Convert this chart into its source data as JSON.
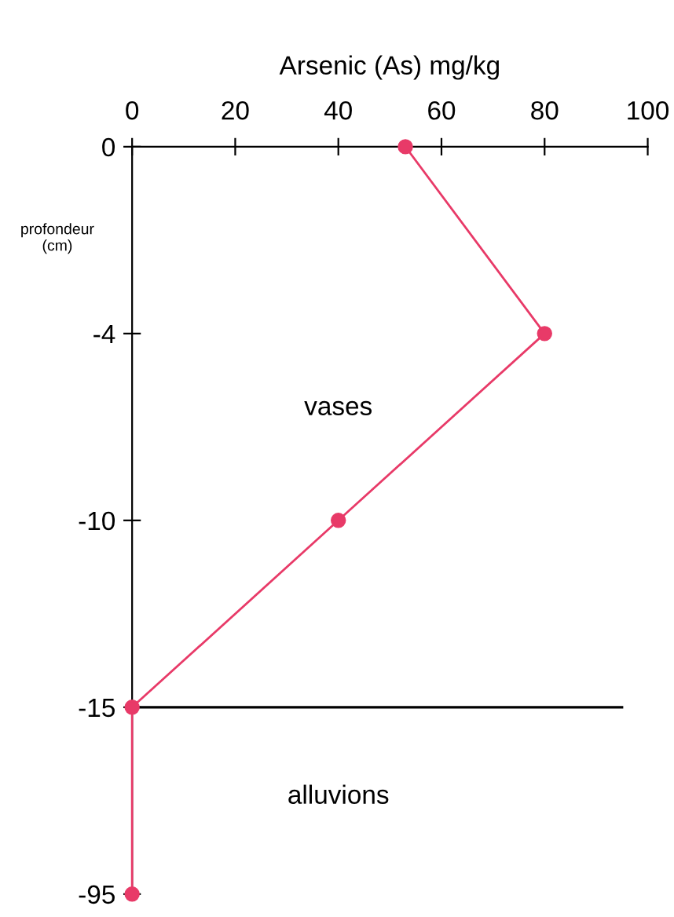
{
  "chart_data": {
    "type": "line",
    "orientation": "horizontal",
    "xlabel": "Arsenic (As) mg/kg",
    "ylabel": "profondeur\n(cm)",
    "categories": [
      "0",
      "-4",
      "-10",
      "-15",
      "-95"
    ],
    "values": [
      53,
      80,
      40,
      0,
      0
    ],
    "color": "#e83a68",
    "marker": "circle",
    "line_style": "solid",
    "xlim": [
      0,
      100
    ],
    "xticks": [
      0,
      20,
      40,
      60,
      80,
      100
    ],
    "grid": false,
    "legend": false,
    "ref_lines": [
      {
        "axis": "y",
        "value": "-15",
        "color": "#000000"
      }
    ],
    "annotations": [
      "vases",
      "alluvions"
    ]
  }
}
